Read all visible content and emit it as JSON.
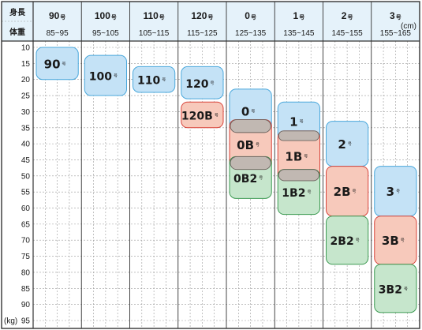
{
  "chart_data": {
    "type": "table",
    "corner": {
      "top": "身長",
      "bottom": "体重"
    },
    "height_unit": "(cm)",
    "weight_unit": "(kg)",
    "columns": [
      {
        "label": "90",
        "suffix": "号",
        "range": "85~95"
      },
      {
        "label": "100",
        "suffix": "号",
        "range": "95~105"
      },
      {
        "label": "110",
        "suffix": "号",
        "range": "105~115"
      },
      {
        "label": "120",
        "suffix": "号",
        "range": "115~125"
      },
      {
        "label": "0",
        "suffix": "号",
        "range": "125~135"
      },
      {
        "label": "1",
        "suffix": "号",
        "range": "135~145"
      },
      {
        "label": "2",
        "suffix": "号",
        "range": "145~155"
      },
      {
        "label": "3",
        "suffix": "号",
        "range": "155~165"
      }
    ],
    "weights": [
      10,
      15,
      20,
      25,
      30,
      35,
      40,
      45,
      50,
      55,
      60,
      65,
      70,
      75,
      80,
      85,
      90,
      95
    ],
    "weight_axis": [
      10,
      95
    ],
    "sizes": [
      {
        "label": "90",
        "suffix": "号",
        "col": 0,
        "w_from": 10,
        "w_to": 20,
        "type": "standard"
      },
      {
        "label": "100",
        "suffix": "号",
        "col": 1,
        "w_from": 12.5,
        "w_to": 25,
        "type": "standard"
      },
      {
        "label": "110",
        "suffix": "号",
        "col": 2,
        "w_from": 16,
        "w_to": 24,
        "type": "standard"
      },
      {
        "label": "120",
        "suffix": "号",
        "col": 3,
        "w_from": 16,
        "w_to": 26,
        "type": "standard"
      },
      {
        "label": "120B",
        "suffix": "号",
        "col": 3,
        "w_from": 27,
        "w_to": 35,
        "type": "b"
      },
      {
        "label": "0",
        "suffix": "号",
        "col": 4,
        "w_from": 23,
        "w_to": 36.5,
        "type": "standard"
      },
      {
        "label": "0B",
        "suffix": "号",
        "col": 4,
        "w_from": 32.5,
        "w_to": 48,
        "type": "b"
      },
      {
        "label": "0B2",
        "suffix": "号",
        "col": 4,
        "w_from": 44,
        "w_to": 57,
        "type": "b2"
      },
      {
        "label": "1",
        "suffix": "号",
        "col": 5,
        "w_from": 27,
        "w_to": 39,
        "type": "standard"
      },
      {
        "label": "1B",
        "suffix": "号",
        "col": 5,
        "w_from": 36,
        "w_to": 51.5,
        "type": "b"
      },
      {
        "label": "1B2",
        "suffix": "号",
        "col": 5,
        "w_from": 48,
        "w_to": 62,
        "type": "b2"
      },
      {
        "label": "2",
        "suffix": "号",
        "col": 6,
        "w_from": 33,
        "w_to": 47,
        "type": "standard"
      },
      {
        "label": "2B",
        "suffix": "号",
        "col": 6,
        "w_from": 47,
        "w_to": 62.5,
        "type": "b"
      },
      {
        "label": "2B2",
        "suffix": "号",
        "col": 6,
        "w_from": 62.5,
        "w_to": 77.5,
        "type": "b2"
      },
      {
        "label": "3",
        "suffix": "号",
        "col": 7,
        "w_from": 47,
        "w_to": 62.5,
        "type": "standard"
      },
      {
        "label": "3B",
        "suffix": "号",
        "col": 7,
        "w_from": 62.5,
        "w_to": 77.5,
        "type": "b"
      },
      {
        "label": "3B2",
        "suffix": "号",
        "col": 7,
        "w_from": 77.5,
        "w_to": 92.5,
        "type": "b2"
      }
    ],
    "overlaps": [
      {
        "col": 4,
        "w_from": 32.5,
        "w_to": 36.5
      },
      {
        "col": 4,
        "w_from": 44,
        "w_to": 48
      },
      {
        "col": 5,
        "w_from": 36,
        "w_to": 39
      },
      {
        "col": 5,
        "w_from": 48,
        "w_to": 51.5
      }
    ],
    "colors": {
      "standard_fill": "#c4e2f6",
      "standard_stroke": "#4aa8dc",
      "b_fill": "#f7c9bb",
      "b_stroke": "#d8433a",
      "b2_fill": "#c6e6cc",
      "b2_stroke": "#3c9a52",
      "overlap_fill": "#c1b8b2",
      "overlap_stroke": "#6b625d",
      "header_bg": "#e5f2fa",
      "grid": "#9a9a9a",
      "border": "#333333"
    }
  }
}
